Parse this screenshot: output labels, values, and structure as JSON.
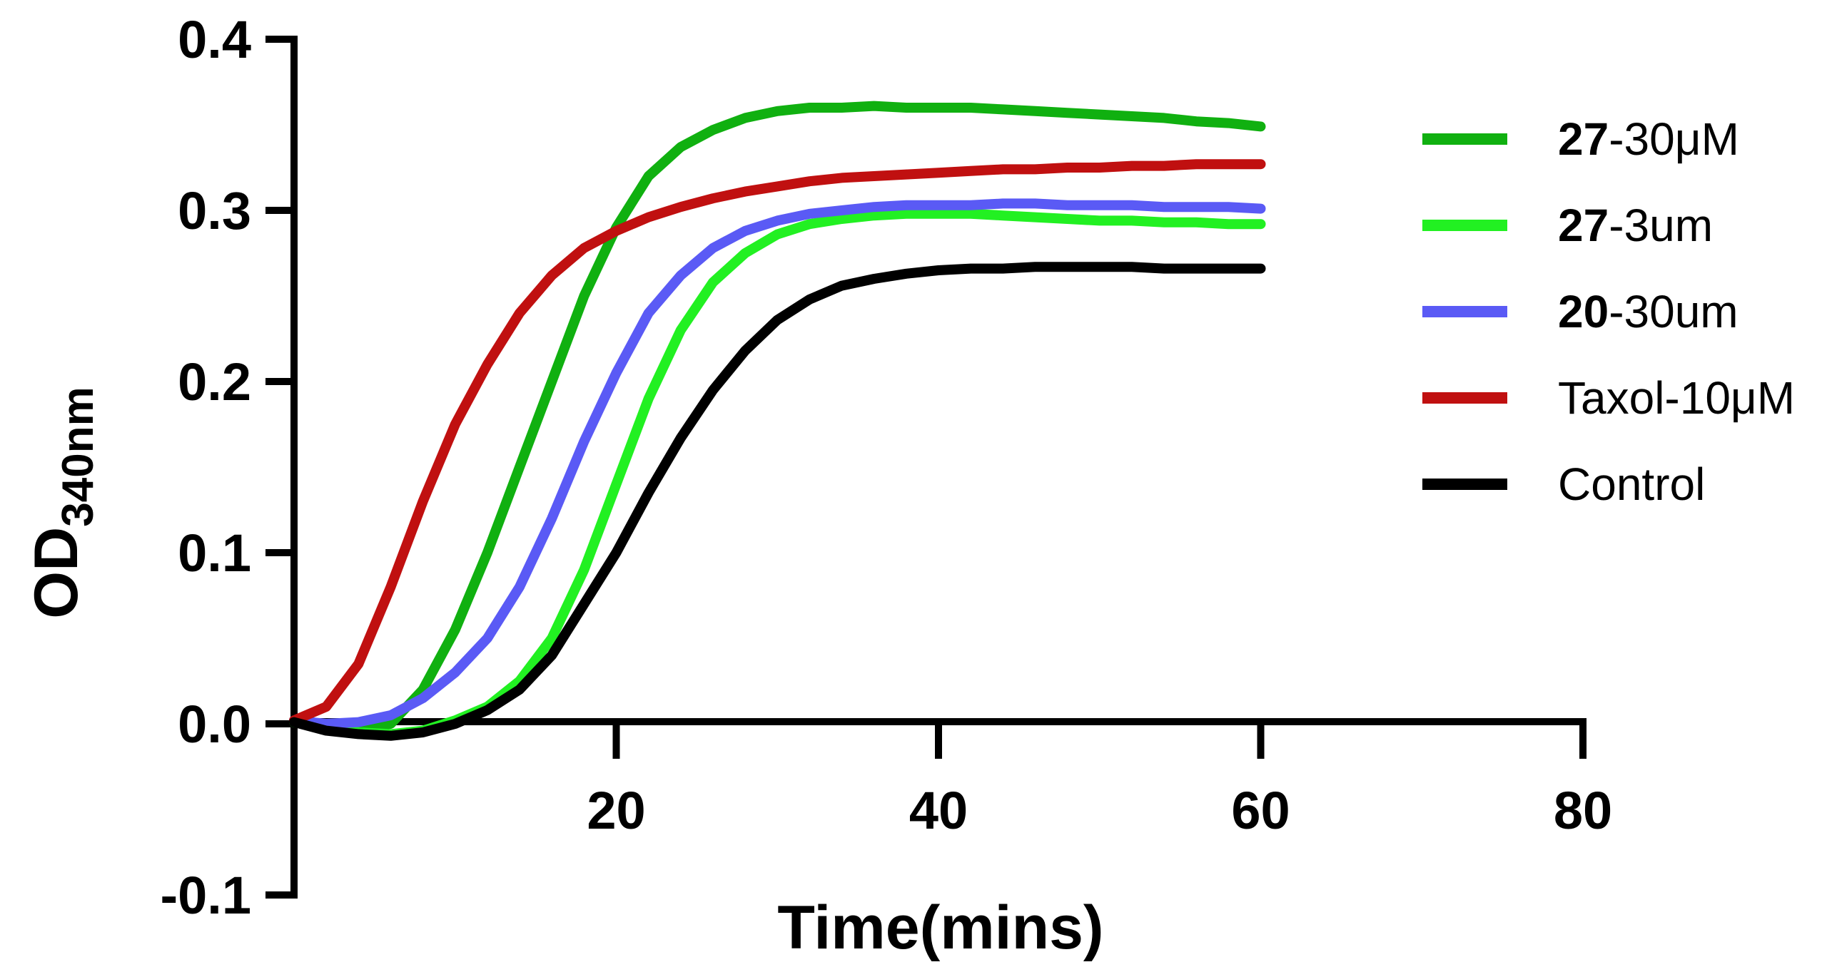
{
  "chart_data": {
    "type": "line",
    "title": "",
    "xlabel": "Time(mins)",
    "ylabel": {
      "main": "OD",
      "sub": "340nm"
    },
    "xlim": [
      0,
      80
    ],
    "ylim": [
      -0.1,
      0.4
    ],
    "x_ticks": [
      20,
      40,
      60,
      80
    ],
    "x_tick_labels": [
      "20",
      "40",
      "60",
      "80"
    ],
    "y_ticks": [
      -0.1,
      0.0,
      0.1,
      0.2,
      0.3,
      0.4
    ],
    "y_tick_labels": [
      "-0.1",
      "0.0",
      "0.1",
      "0.2",
      "0.3",
      "0.4"
    ],
    "grid": false,
    "legend_position": "right",
    "x": [
      0,
      2,
      4,
      6,
      8,
      10,
      12,
      14,
      16,
      18,
      20,
      22,
      24,
      26,
      28,
      30,
      32,
      34,
      36,
      38,
      40,
      42,
      44,
      46,
      48,
      50,
      52,
      54,
      56,
      58,
      60
    ],
    "series": [
      {
        "name": "27-30μM",
        "bold": "27",
        "suffix": "-30μM",
        "color": "#10b010",
        "values": [
          0.001,
          -0.002,
          -0.003,
          0.0,
          0.02,
          0.055,
          0.1,
          0.15,
          0.2,
          0.25,
          0.29,
          0.32,
          0.337,
          0.347,
          0.354,
          0.358,
          0.36,
          0.36,
          0.361,
          0.36,
          0.36,
          0.36,
          0.359,
          0.358,
          0.357,
          0.356,
          0.355,
          0.354,
          0.352,
          0.351,
          0.349
        ]
      },
      {
        "name": "27-3um",
        "bold": "27",
        "suffix": "-3um",
        "color": "#22f022",
        "values": [
          0.001,
          -0.003,
          -0.005,
          -0.006,
          -0.004,
          0.002,
          0.01,
          0.025,
          0.05,
          0.09,
          0.14,
          0.19,
          0.23,
          0.258,
          0.275,
          0.286,
          0.292,
          0.295,
          0.297,
          0.298,
          0.298,
          0.298,
          0.297,
          0.296,
          0.295,
          0.294,
          0.294,
          0.293,
          0.293,
          0.292,
          0.292
        ]
      },
      {
        "name": "20-30um",
        "bold": "20",
        "suffix": "-30um",
        "color": "#5a5af5",
        "values": [
          0.002,
          0.0,
          0.001,
          0.005,
          0.015,
          0.03,
          0.05,
          0.08,
          0.12,
          0.165,
          0.205,
          0.24,
          0.262,
          0.278,
          0.288,
          0.294,
          0.298,
          0.3,
          0.302,
          0.303,
          0.303,
          0.303,
          0.304,
          0.304,
          0.303,
          0.303,
          0.303,
          0.302,
          0.302,
          0.302,
          0.301
        ]
      },
      {
        "name": "Taxol-10μM",
        "bold": "",
        "suffix": "Taxol-10μM",
        "color": "#c01010",
        "values": [
          0.002,
          0.01,
          0.035,
          0.08,
          0.13,
          0.175,
          0.21,
          0.24,
          0.262,
          0.278,
          0.288,
          0.296,
          0.302,
          0.307,
          0.311,
          0.314,
          0.317,
          0.319,
          0.32,
          0.321,
          0.322,
          0.323,
          0.324,
          0.324,
          0.325,
          0.325,
          0.326,
          0.326,
          0.327,
          0.327,
          0.327
        ]
      },
      {
        "name": "Control",
        "bold": "",
        "suffix": "Control",
        "color": "#000000",
        "values": [
          0.001,
          -0.004,
          -0.006,
          -0.007,
          -0.005,
          0.0,
          0.008,
          0.02,
          0.04,
          0.07,
          0.1,
          0.135,
          0.167,
          0.195,
          0.218,
          0.236,
          0.248,
          0.256,
          0.26,
          0.263,
          0.265,
          0.266,
          0.266,
          0.267,
          0.267,
          0.267,
          0.267,
          0.266,
          0.266,
          0.266,
          0.266
        ]
      }
    ]
  }
}
